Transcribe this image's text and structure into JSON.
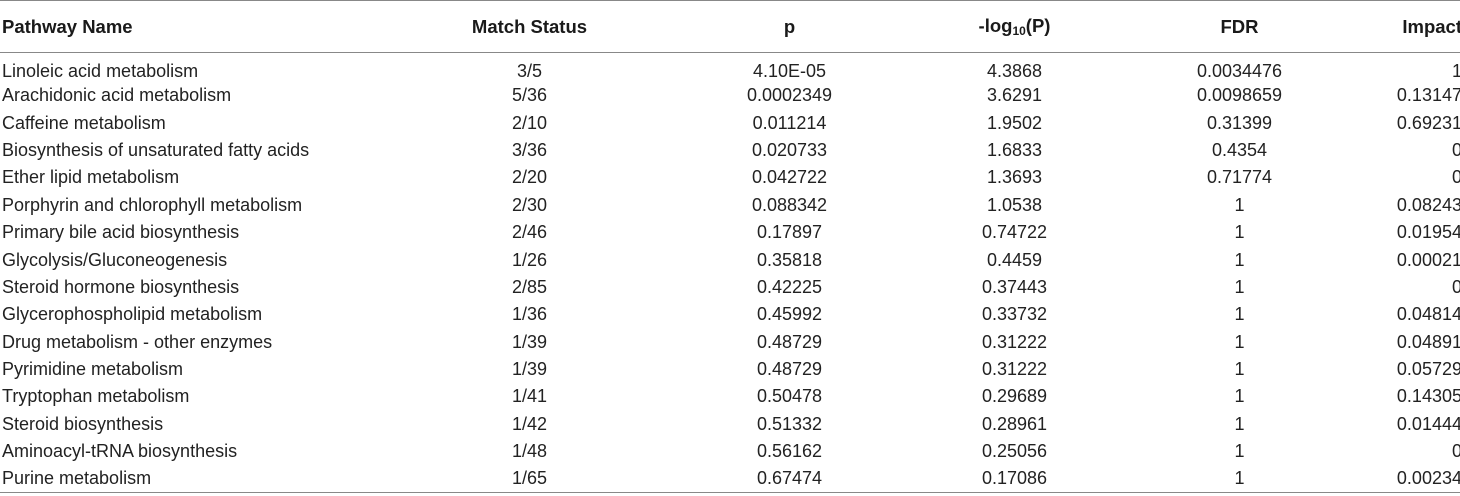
{
  "table": {
    "headers": {
      "name": "Pathway Name",
      "match": "Match Status",
      "p": "p",
      "log_prefix": "-log",
      "log_sub": "10",
      "log_suffix": "(P)",
      "fdr": "FDR",
      "impact": "Impact"
    },
    "rows": [
      {
        "name": "Linoleic acid metabolism",
        "match": "3/5",
        "p": "4.10E-05",
        "log": "4.3868",
        "fdr": "0.0034476",
        "impact": "1"
      },
      {
        "name": "Arachidonic acid metabolism",
        "match": "5/36",
        "p": "0.0002349",
        "log": "3.6291",
        "fdr": "0.0098659",
        "impact": "0.13147"
      },
      {
        "name": "Caffeine metabolism",
        "match": "2/10",
        "p": "0.011214",
        "log": "1.9502",
        "fdr": "0.31399",
        "impact": "0.69231"
      },
      {
        "name": "Biosynthesis of unsaturated fatty acids",
        "match": "3/36",
        "p": "0.020733",
        "log": "1.6833",
        "fdr": "0.4354",
        "impact": "0"
      },
      {
        "name": "Ether lipid metabolism",
        "match": "2/20",
        "p": "0.042722",
        "log": "1.3693",
        "fdr": "0.71774",
        "impact": "0"
      },
      {
        "name": "Porphyrin and chlorophyll metabolism",
        "match": "2/30",
        "p": "0.088342",
        "log": "1.0538",
        "fdr": "1",
        "impact": "0.08243"
      },
      {
        "name": "Primary bile acid biosynthesis",
        "match": "2/46",
        "p": "0.17897",
        "log": "0.74722",
        "fdr": "1",
        "impact": "0.01954"
      },
      {
        "name": "Glycolysis/Gluconeogenesis",
        "match": "1/26",
        "p": "0.35818",
        "log": "0.4459",
        "fdr": "1",
        "impact": "0.00021"
      },
      {
        "name": "Steroid hormone biosynthesis",
        "match": "2/85",
        "p": "0.42225",
        "log": "0.37443",
        "fdr": "1",
        "impact": "0"
      },
      {
        "name": "Glycerophospholipid metabolism",
        "match": "1/36",
        "p": "0.45992",
        "log": "0.33732",
        "fdr": "1",
        "impact": "0.04814"
      },
      {
        "name": "Drug metabolism - other enzymes",
        "match": "1/39",
        "p": "0.48729",
        "log": "0.31222",
        "fdr": "1",
        "impact": "0.04891"
      },
      {
        "name": "Pyrimidine metabolism",
        "match": "1/39",
        "p": "0.48729",
        "log": "0.31222",
        "fdr": "1",
        "impact": "0.05729"
      },
      {
        "name": "Tryptophan metabolism",
        "match": "1/41",
        "p": "0.50478",
        "log": "0.29689",
        "fdr": "1",
        "impact": "0.14305"
      },
      {
        "name": "Steroid biosynthesis",
        "match": "1/42",
        "p": "0.51332",
        "log": "0.28961",
        "fdr": "1",
        "impact": "0.01444"
      },
      {
        "name": "Aminoacyl-tRNA biosynthesis",
        "match": "1/48",
        "p": "0.56162",
        "log": "0.25056",
        "fdr": "1",
        "impact": "0"
      },
      {
        "name": "Purine metabolism",
        "match": "1/65",
        "p": "0.67474",
        "log": "0.17086",
        "fdr": "1",
        "impact": "0.00234"
      }
    ]
  }
}
